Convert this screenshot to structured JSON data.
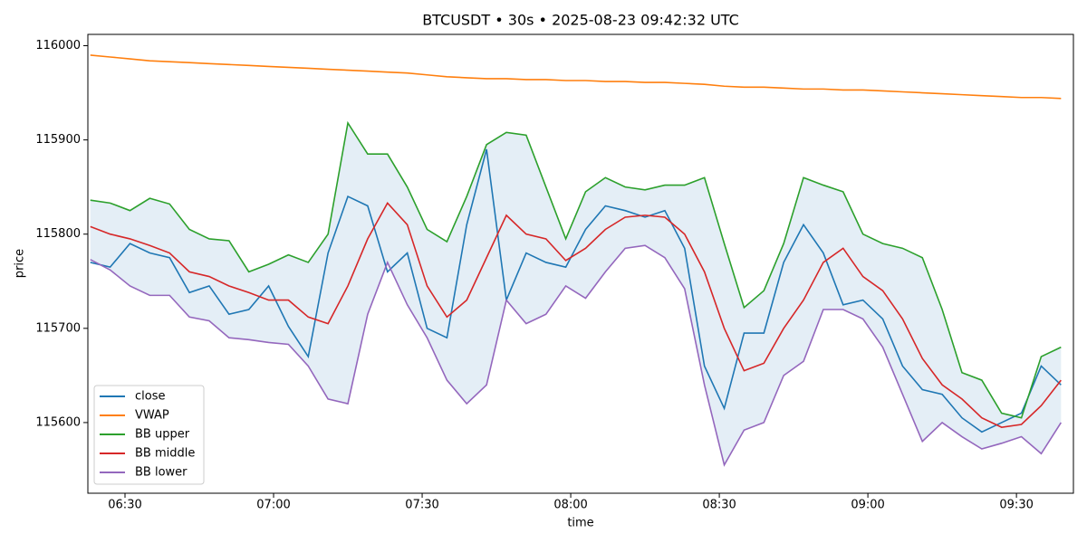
{
  "chart_data": {
    "type": "line",
    "title": "BTCUSDT • 30s • 2025-08-23 09:42:32 UTC",
    "xlabel": "time",
    "ylabel": "price",
    "x": [
      "06:23",
      "06:27",
      "06:31",
      "06:35",
      "06:39",
      "06:43",
      "06:47",
      "06:51",
      "06:55",
      "06:59",
      "07:03",
      "07:07",
      "07:11",
      "07:15",
      "07:19",
      "07:23",
      "07:27",
      "07:31",
      "07:35",
      "07:39",
      "07:43",
      "07:47",
      "07:51",
      "07:55",
      "07:59",
      "08:03",
      "08:07",
      "08:11",
      "08:15",
      "08:19",
      "08:23",
      "08:27",
      "08:31",
      "08:35",
      "08:39",
      "08:43",
      "08:47",
      "08:51",
      "08:55",
      "08:59",
      "09:03",
      "09:07",
      "09:11",
      "09:15",
      "09:19",
      "09:23",
      "09:27",
      "09:31",
      "09:35",
      "09:39"
    ],
    "xlim": [
      "06:22:30",
      "09:41:30"
    ],
    "xticks": [
      "06:30",
      "07:00",
      "07:30",
      "08:00",
      "08:30",
      "09:00",
      "09:30"
    ],
    "ylim": [
      115525,
      116012
    ],
    "yticks": [
      115600,
      115700,
      115800,
      115900,
      116000
    ],
    "fill_color": "#1f77b4",
    "legend": "lower left",
    "series": [
      {
        "name": "close",
        "color": "#1f77b4",
        "values": [
          115770,
          115765,
          115790,
          115780,
          115775,
          115738,
          115745,
          115715,
          115720,
          115745,
          115702,
          115670,
          115780,
          115840,
          115830,
          115760,
          115780,
          115700,
          115690,
          115810,
          115890,
          115730,
          115780,
          115770,
          115765,
          115805,
          115830,
          115825,
          115818,
          115825,
          115785,
          115660,
          115615,
          115695,
          115695,
          115770,
          115810,
          115780,
          115725,
          115730,
          115710,
          115660,
          115635,
          115630,
          115605,
          115590,
          115600,
          115610,
          115660,
          115640
        ]
      },
      {
        "name": "VWAP",
        "color": "#ff7f0e",
        "values": [
          115990,
          115988,
          115986,
          115984,
          115983,
          115982,
          115981,
          115980,
          115979,
          115978,
          115977,
          115976,
          115975,
          115974,
          115973,
          115972,
          115971,
          115969,
          115967,
          115966,
          115965,
          115965,
          115964,
          115964,
          115963,
          115963,
          115962,
          115962,
          115961,
          115961,
          115960,
          115959,
          115957,
          115956,
          115956,
          115955,
          115954,
          115954,
          115953,
          115953,
          115952,
          115951,
          115950,
          115949,
          115948,
          115947,
          115946,
          115945,
          115945,
          115944
        ]
      },
      {
        "name": "BB upper",
        "color": "#2ca02c",
        "values": [
          115836,
          115833,
          115825,
          115838,
          115832,
          115805,
          115795,
          115793,
          115760,
          115768,
          115778,
          115770,
          115800,
          115918,
          115885,
          115885,
          115850,
          115805,
          115792,
          115840,
          115895,
          115908,
          115905,
          115850,
          115795,
          115845,
          115860,
          115850,
          115847,
          115852,
          115852,
          115860,
          115790,
          115722,
          115740,
          115790,
          115860,
          115852,
          115845,
          115800,
          115790,
          115785,
          115775,
          115720,
          115653,
          115645,
          115610,
          115605,
          115670,
          115680
        ]
      },
      {
        "name": "BB middle",
        "color": "#d62728",
        "values": [
          115808,
          115800,
          115795,
          115788,
          115780,
          115760,
          115755,
          115745,
          115738,
          115730,
          115730,
          115712,
          115705,
          115745,
          115795,
          115833,
          115810,
          115745,
          115712,
          115730,
          115775,
          115820,
          115800,
          115795,
          115772,
          115785,
          115805,
          115818,
          115820,
          115818,
          115800,
          115760,
          115700,
          115655,
          115663,
          115700,
          115730,
          115770,
          115785,
          115755,
          115740,
          115710,
          115668,
          115640,
          115625,
          115605,
          115595,
          115598,
          115618,
          115645
        ]
      },
      {
        "name": "BB lower",
        "color": "#9467bd",
        "values": [
          115773,
          115762,
          115745,
          115735,
          115735,
          115712,
          115708,
          115690,
          115688,
          115685,
          115683,
          115660,
          115625,
          115620,
          115715,
          115770,
          115725,
          115690,
          115645,
          115620,
          115640,
          115730,
          115705,
          115715,
          115745,
          115732,
          115760,
          115785,
          115788,
          115775,
          115742,
          115640,
          115555,
          115592,
          115600,
          115650,
          115665,
          115720,
          115720,
          115710,
          115680,
          115630,
          115580,
          115600,
          115585,
          115572,
          115578,
          115585,
          115567,
          115600
        ]
      }
    ]
  }
}
